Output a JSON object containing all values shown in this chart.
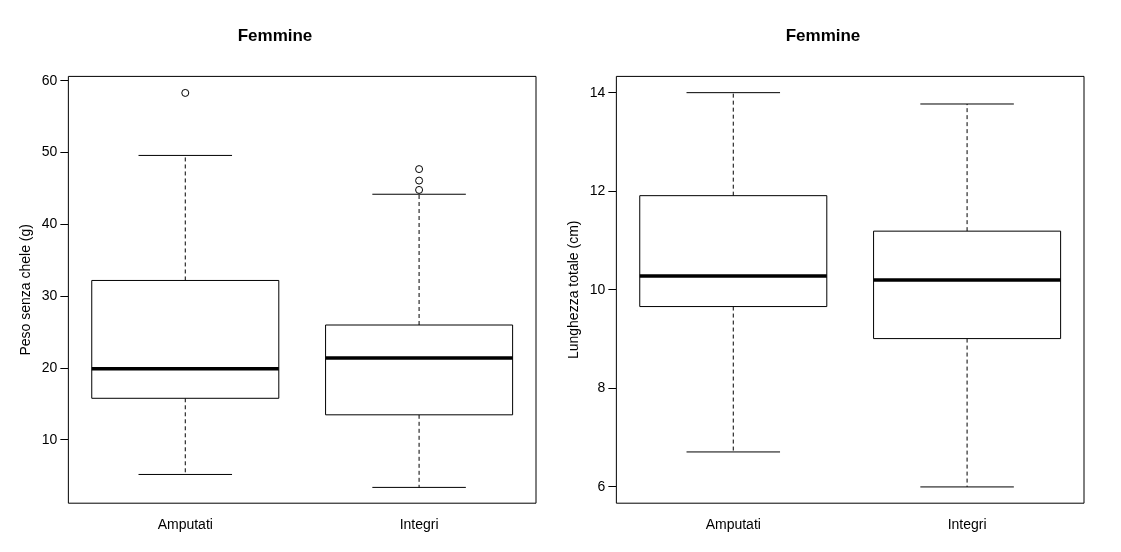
{
  "chart_data": [
    {
      "type": "box",
      "title": "Femmine",
      "ylabel": "Peso senza chele (g)",
      "categories": [
        "Amputati",
        "Integri"
      ],
      "boxes": [
        {
          "low": 5.2,
          "q1": 15.8,
          "median": 19.9,
          "q3": 32.2,
          "high": 49.6,
          "outliers": [
            58.3
          ]
        },
        {
          "low": 3.4,
          "q1": 13.5,
          "median": 21.4,
          "q3": 26.0,
          "high": 44.2,
          "outliers": [
            44.8,
            46.1,
            47.7
          ]
        }
      ],
      "ylim": [
        1.2,
        60.6
      ],
      "yticks": [
        10,
        20,
        30,
        40,
        50,
        60
      ],
      "grid": false
    },
    {
      "type": "box",
      "title": "Femmine",
      "ylabel": "Lunghezza totale (cm)",
      "categories": [
        "Amputati",
        "Integri"
      ],
      "boxes": [
        {
          "low": 6.71,
          "q1": 9.66,
          "median": 10.28,
          "q3": 11.91,
          "high": 14.0
        },
        {
          "low": 6.0,
          "q1": 9.01,
          "median": 10.2,
          "q3": 11.19,
          "high": 13.77
        }
      ],
      "ylim": [
        5.67,
        14.33
      ],
      "yticks": [
        6,
        8,
        10,
        12,
        14
      ],
      "grid": false
    }
  ]
}
